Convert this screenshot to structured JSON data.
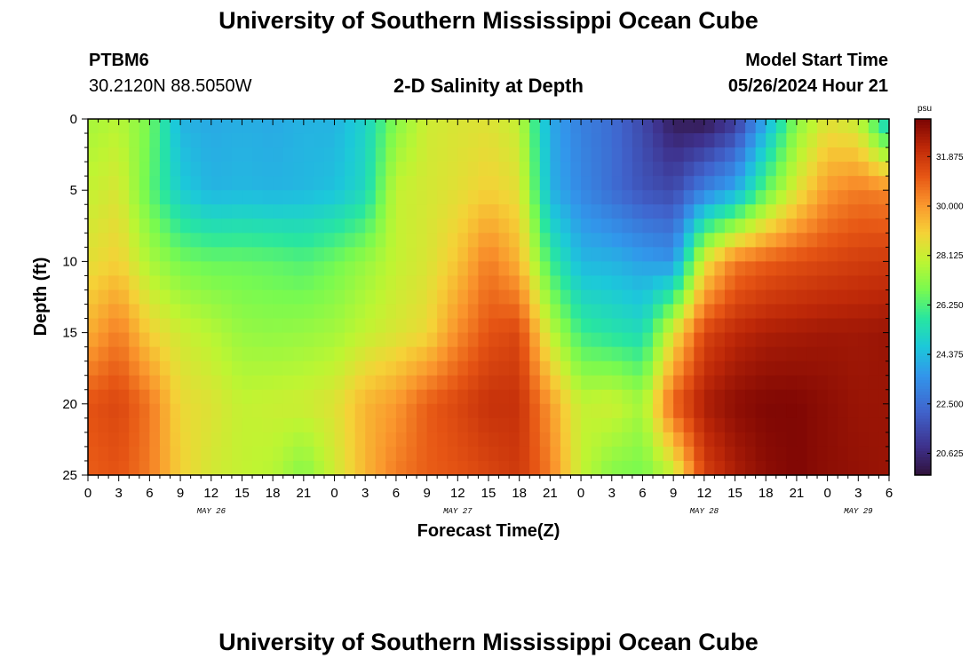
{
  "header": {
    "title": "University of Southern Mississippi Ocean Cube",
    "footer_title": "University of Southern Mississippi Ocean Cube",
    "station_id": "PTBM6",
    "station_coords": "30.2120N  88.5050W",
    "plot_name": "2-D Salinity at Depth",
    "model_start_label": "Model Start Time",
    "model_start_value": "05/26/2024 Hour 21"
  },
  "chart_data": {
    "type": "heatmap",
    "title": "2-D Salinity at Depth",
    "xlabel": "Forecast Time(Z)",
    "ylabel": "Depth (ft)",
    "x_ticks": [
      "0",
      "3",
      "6",
      "9",
      "12",
      "15",
      "18",
      "21",
      "0",
      "3",
      "6",
      "9",
      "12",
      "15",
      "18",
      "21",
      "0",
      "3",
      "6",
      "9",
      "12",
      "15",
      "18",
      "21",
      "0",
      "3",
      "6"
    ],
    "x_hours": [
      0,
      3,
      6,
      9,
      12,
      15,
      18,
      21,
      24,
      27,
      30,
      33,
      36,
      39,
      42,
      45,
      48,
      51,
      54,
      57,
      60,
      63,
      66,
      69,
      72,
      75,
      78
    ],
    "x_range": [
      0,
      78
    ],
    "day_labels": [
      {
        "text": "MAY 26",
        "hour": 12
      },
      {
        "text": "MAY 27",
        "hour": 36
      },
      {
        "text": "MAY 28",
        "hour": 60
      },
      {
        "text": "MAY 29",
        "hour": 75
      }
    ],
    "y_ticks": [
      "0",
      "5",
      "10",
      "15",
      "20",
      "25"
    ],
    "y_values": [
      0,
      5,
      10,
      15,
      20,
      25
    ],
    "y_range": [
      0,
      25
    ],
    "colorbar": {
      "units": "psu",
      "min": 19.8,
      "max": 33.3,
      "tick_labels": [
        "31.875",
        "30.000",
        "28.125",
        "26.250",
        "24.375",
        "22.500",
        "20.625"
      ],
      "tick_values": [
        31.875,
        30.0,
        28.125,
        26.25,
        24.375,
        22.5,
        20.625
      ]
    },
    "salinity_grid": {
      "hours": [
        0,
        3,
        6,
        9,
        12,
        15,
        18,
        21,
        24,
        27,
        30,
        33,
        36,
        39,
        42,
        45,
        48,
        51,
        54,
        57,
        60,
        63,
        66,
        69,
        72,
        75,
        78
      ],
      "depths": [
        0,
        5,
        10,
        15,
        20,
        25
      ],
      "values": [
        [
          27.5,
          27.8,
          26.8,
          24.2,
          24.0,
          24.1,
          24.0,
          24.2,
          24.2,
          25.0,
          27.0,
          28.2,
          28.4,
          28.5,
          28.0,
          24.0,
          23.0,
          22.5,
          21.5,
          20.2,
          20.0,
          21.0,
          24.0,
          27.0,
          28.5,
          28.0,
          24.5
        ],
        [
          28.0,
          28.4,
          26.5,
          24.8,
          24.2,
          24.3,
          24.2,
          24.3,
          24.5,
          25.2,
          28.0,
          28.3,
          28.6,
          29.0,
          28.6,
          24.2,
          23.2,
          22.5,
          21.8,
          21.5,
          23.0,
          24.0,
          26.5,
          28.5,
          30.0,
          30.5,
          30.3
        ],
        [
          28.6,
          29.0,
          27.6,
          26.8,
          26.6,
          26.6,
          26.5,
          26.3,
          26.7,
          27.3,
          28.0,
          28.4,
          29.2,
          30.5,
          29.5,
          26.0,
          24.3,
          24.2,
          23.8,
          23.5,
          28.5,
          30.5,
          31.0,
          31.3,
          31.5,
          31.7,
          31.8
        ],
        [
          29.6,
          30.5,
          29.0,
          28.2,
          27.8,
          27.3,
          27.2,
          27.3,
          27.5,
          28.0,
          28.4,
          28.8,
          30.2,
          31.2,
          31.5,
          28.0,
          26.0,
          25.6,
          25.3,
          28.5,
          31.5,
          32.2,
          32.5,
          32.6,
          32.7,
          32.7,
          32.8
        ],
        [
          31.2,
          31.5,
          30.6,
          28.8,
          28.5,
          28.0,
          28.1,
          28.2,
          28.5,
          29.5,
          30.0,
          31.0,
          31.5,
          32.0,
          32.0,
          30.0,
          28.0,
          28.2,
          27.5,
          31.0,
          32.5,
          33.0,
          33.2,
          33.2,
          33.0,
          32.8,
          32.8
        ],
        [
          31.0,
          31.2,
          30.5,
          29.0,
          28.3,
          28.0,
          27.8,
          27.0,
          28.2,
          29.5,
          30.5,
          31.0,
          31.2,
          31.5,
          31.8,
          30.5,
          28.0,
          27.0,
          26.8,
          28.0,
          31.6,
          32.5,
          33.0,
          33.2,
          33.0,
          32.9,
          32.8
        ]
      ]
    }
  },
  "colors": {
    "background": "#ffffff",
    "axis": "#000000"
  }
}
